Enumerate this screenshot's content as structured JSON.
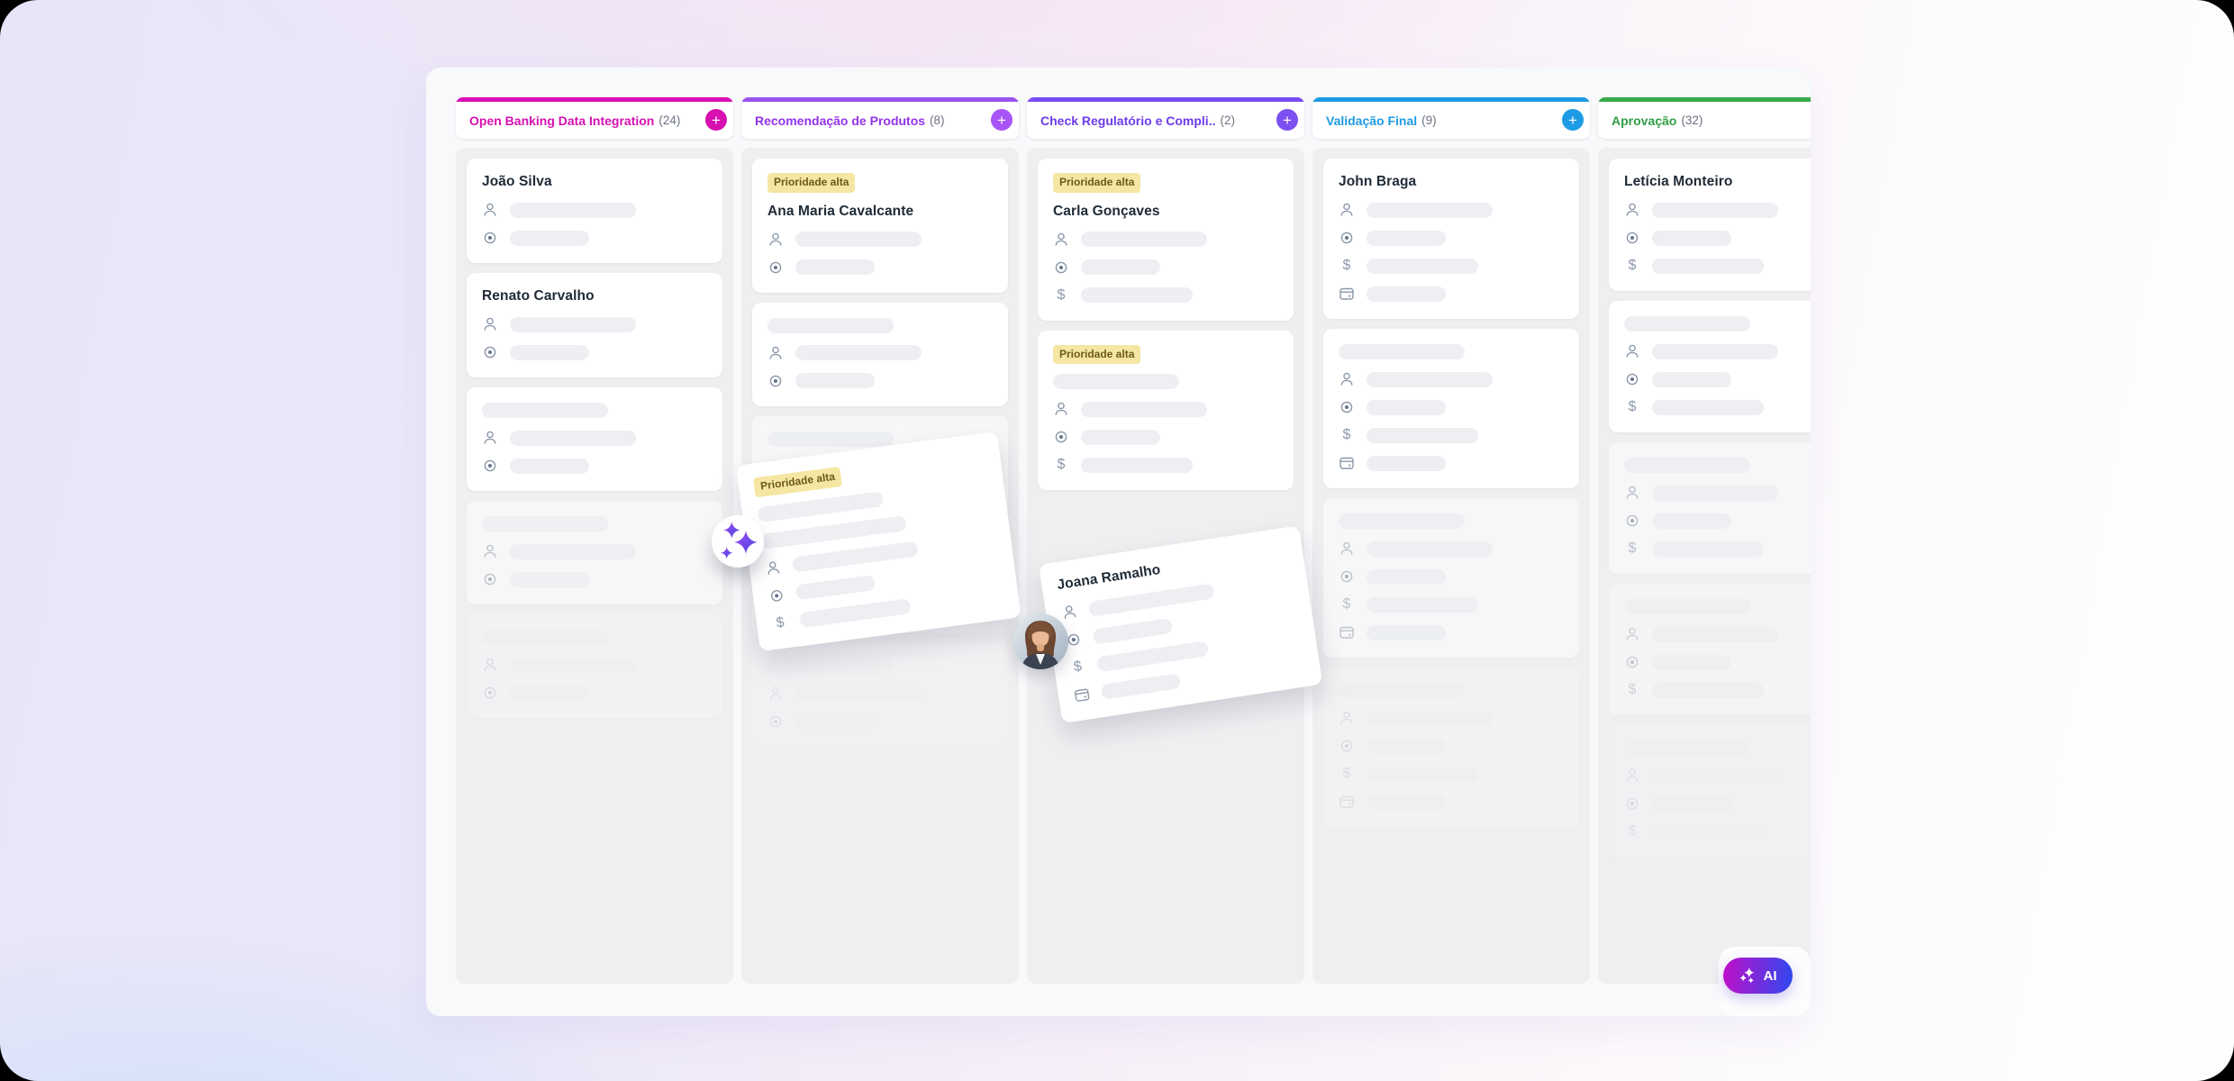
{
  "ai": {
    "label": "AI",
    "gradient_from": "#c10fc9",
    "gradient_to": "#2d49ef"
  },
  "priority_badge": {
    "bg": "#f5e6a3",
    "text": "#6d5a15"
  },
  "board": {
    "columns": [
      {
        "name": "Open Banking Data Integration",
        "count": "(24)",
        "accent": "#d611b0",
        "bar_color": "#db0fb4",
        "plus_color": "#d611b0",
        "has_plus": true,
        "cards": [
          {
            "title": "João Silva",
            "rows": [
              "user-icon",
              "target-icon"
            ]
          },
          {
            "title": "Renato Carvalho",
            "rows": [
              "user-icon",
              "target-icon"
            ]
          },
          {
            "skeleton_title": true,
            "rows": [
              "user-icon",
              "target-icon"
            ]
          },
          {
            "skeleton_title": true,
            "rows": [
              "user-icon",
              "target-icon"
            ],
            "opacity": 0.5
          },
          {
            "skeleton_title": true,
            "rows": [
              "user-icon",
              "target-icon"
            ],
            "opacity": 0.22
          }
        ]
      },
      {
        "name": "Recomendação de Produtos",
        "count": "(8)",
        "accent": "#9333ea",
        "bar_color": "#9a52ef",
        "plus_color": "#a855f7",
        "has_plus": true,
        "cards": [
          {
            "badge": "Prioridade alta",
            "title": "Ana Maria Cavalcante",
            "rows": [
              "user-icon",
              "target-icon"
            ]
          },
          {
            "skeleton_title": true,
            "rows": [
              "user-icon",
              "target-icon"
            ]
          },
          {
            "skeleton_title": true,
            "rows": [
              "user-icon",
              "target-icon"
            ],
            "opacity": 0.5
          },
          {
            "skeleton_title": true,
            "rows": [
              "user-icon",
              "target-icon"
            ],
            "opacity": 0.3
          },
          {
            "skeleton_title": true,
            "rows": [
              "user-icon",
              "target-icon"
            ],
            "opacity": 0.15
          }
        ]
      },
      {
        "name": "Check Regulatório e Compli..",
        "count": "(2)",
        "accent": "#6c3ce9",
        "bar_color": "#7a4cf5",
        "plus_color": "#7c4ff0",
        "has_plus": true,
        "cards": [
          {
            "badge": "Prioridade alta",
            "title": "Carla Gonçaves",
            "rows": [
              "user-icon",
              "target-icon",
              "dollar-icon"
            ]
          },
          {
            "badge": "Prioridade alta",
            "skeleton_title": true,
            "rows": [
              "user-icon",
              "target-icon",
              "dollar-icon"
            ]
          }
        ]
      },
      {
        "name": "Validação Final",
        "count": "(9)",
        "accent": "#1d9be4",
        "bar_color": "#1d9ce5",
        "plus_color": "#1d9be4",
        "has_plus": true,
        "cards": [
          {
            "title": "John Braga",
            "rows": [
              "user-icon",
              "target-icon",
              "dollar-icon",
              "calendar-icon"
            ]
          },
          {
            "skeleton_title": true,
            "rows": [
              "user-icon",
              "target-icon",
              "dollar-icon",
              "calendar-icon"
            ]
          },
          {
            "skeleton_title": true,
            "rows": [
              "user-icon",
              "target-icon",
              "dollar-icon",
              "calendar-icon"
            ],
            "opacity": 0.5
          },
          {
            "skeleton_title": true,
            "rows": [
              "user-icon",
              "target-icon",
              "dollar-icon",
              "calendar-icon"
            ],
            "opacity": 0.2
          }
        ]
      },
      {
        "name": "Aprovação",
        "count": "(32)",
        "accent": "#2f9e44",
        "bar_color": "#38ab4c",
        "plus_color": "#2f9e44",
        "has_plus": false,
        "cards": [
          {
            "title": "Letícia Monteiro",
            "rows": [
              "user-icon",
              "target-icon",
              "dollar-icon"
            ]
          },
          {
            "skeleton_title": true,
            "rows": [
              "user-icon",
              "target-icon",
              "dollar-icon"
            ]
          },
          {
            "skeleton_title": true,
            "rows": [
              "user-icon",
              "target-icon",
              "dollar-icon"
            ],
            "opacity": 0.55
          },
          {
            "skeleton_title": true,
            "rows": [
              "user-icon",
              "target-icon",
              "dollar-icon"
            ],
            "opacity": 0.35
          },
          {
            "skeleton_title": true,
            "rows": [
              "user-icon",
              "target-icon",
              "dollar-icon"
            ],
            "opacity": 0.18
          }
        ]
      }
    ]
  },
  "floating_cards": {
    "dragged_a": {
      "badge": "Prioridade alta",
      "skeleton_title": true,
      "skeleton_lines": 2,
      "rows": [
        "user-icon",
        "target-icon",
        "dollar-icon"
      ]
    },
    "dragged_b": {
      "title": "Joana Ramalho",
      "rows": [
        "user-icon",
        "target-icon",
        "dollar-icon",
        "calendar-icon"
      ]
    }
  }
}
